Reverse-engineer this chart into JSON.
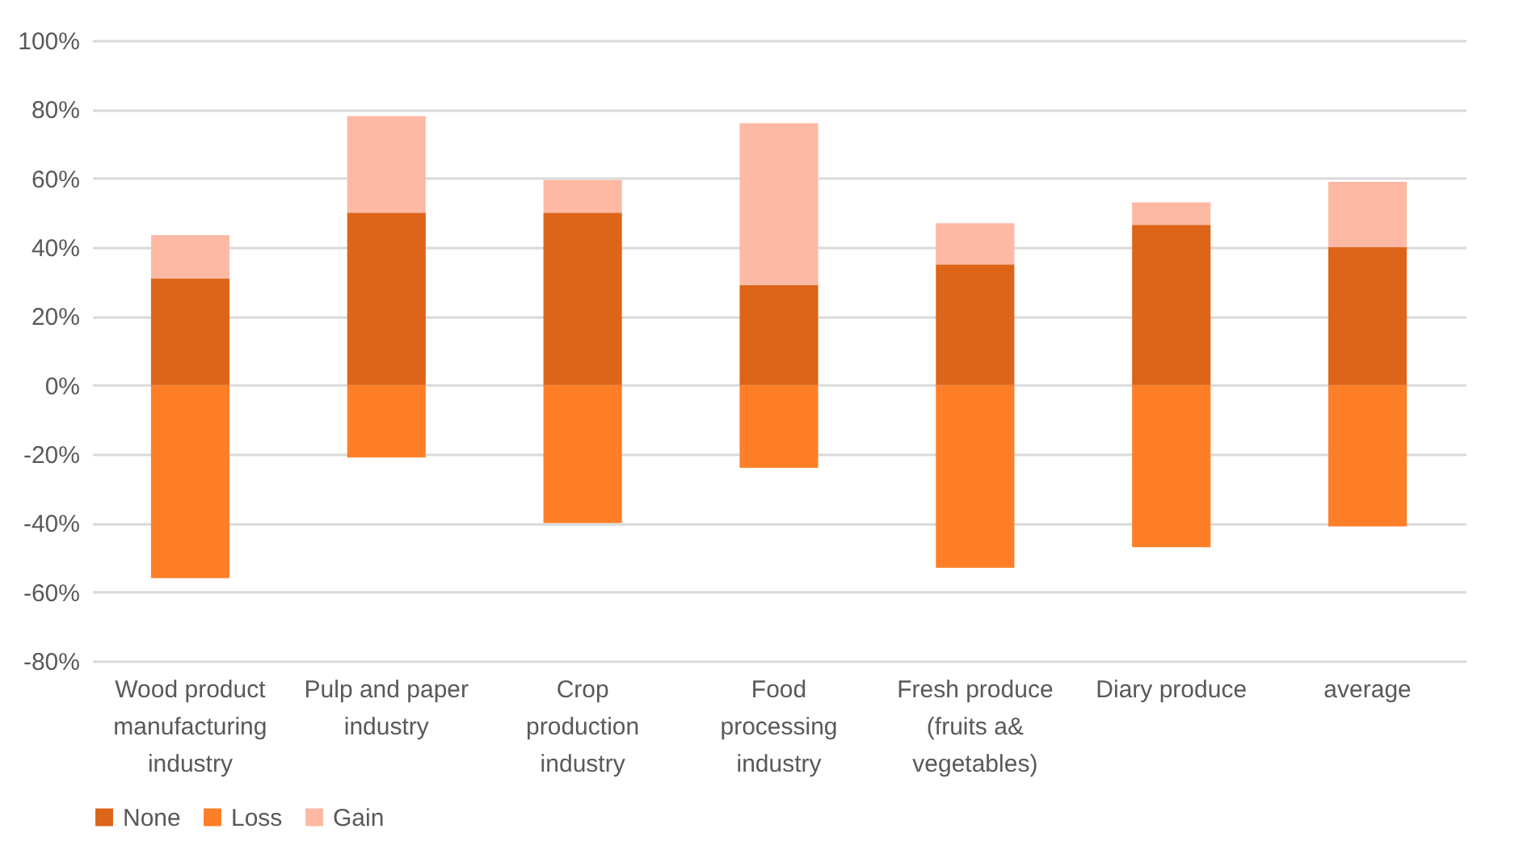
{
  "chart_data": {
    "type": "bar",
    "stacked": true,
    "categories": [
      "Wood product manufacturing industry",
      "Pulp and paper industry",
      "Crop production industry",
      "Food processing industry",
      "Fresh produce (fruits a& vegetables)",
      "Diary produce",
      "average"
    ],
    "series": [
      {
        "name": "None",
        "color": "#dd6519",
        "values": [
          31,
          50,
          50,
          29,
          35,
          46.5,
          40
        ]
      },
      {
        "name": "Loss",
        "color": "#fe7f27",
        "values": [
          -56,
          -21,
          -40,
          -24,
          -53,
          -47,
          -41
        ]
      },
      {
        "name": "Gain",
        "color": "#fdb9a4",
        "values": [
          12.5,
          28,
          9.5,
          47,
          12,
          6.5,
          19
        ]
      }
    ],
    "ylim": [
      -80,
      100
    ],
    "yticks": [
      {
        "value": -80,
        "label": "-80%"
      },
      {
        "value": -60,
        "label": "-60%"
      },
      {
        "value": -40,
        "label": "-40%"
      },
      {
        "value": -20,
        "label": "-20%"
      },
      {
        "value": 0,
        "label": "0%"
      },
      {
        "value": 20,
        "label": "20%"
      },
      {
        "value": 40,
        "label": "40%"
      },
      {
        "value": 60,
        "label": "60%"
      },
      {
        "value": 80,
        "label": "80%"
      },
      {
        "value": 100,
        "label": "100%"
      }
    ],
    "grid": "y",
    "legend": "bottom"
  }
}
